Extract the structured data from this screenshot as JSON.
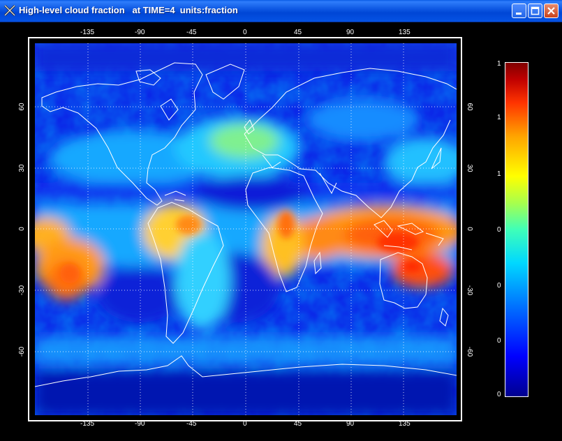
{
  "window": {
    "title": "High-level cloud fraction   at TIME=4  units:fraction",
    "icon": "x-logo-icon",
    "controls": {
      "minimize": "minimize-icon",
      "maximize": "maximize-icon",
      "close": "close-icon"
    }
  },
  "map": {
    "projection": "equirectangular",
    "variable": "High-level cloud fraction",
    "lon_ticks": [
      "-135",
      "-90",
      "-45",
      "0",
      "45",
      "90",
      "135"
    ],
    "lat_ticks": [
      "60",
      "30",
      "0",
      "-30",
      "-60"
    ],
    "grid": "dotted",
    "coastlines": true,
    "colors": {
      "low": "#00008f",
      "mid": "#00ffff",
      "high": "#ff4000",
      "coast": "#ffffff"
    }
  },
  "colorbar": {
    "labels": [
      "1",
      "1",
      "1",
      "0",
      "0",
      "0",
      "0"
    ],
    "position": "right"
  }
}
